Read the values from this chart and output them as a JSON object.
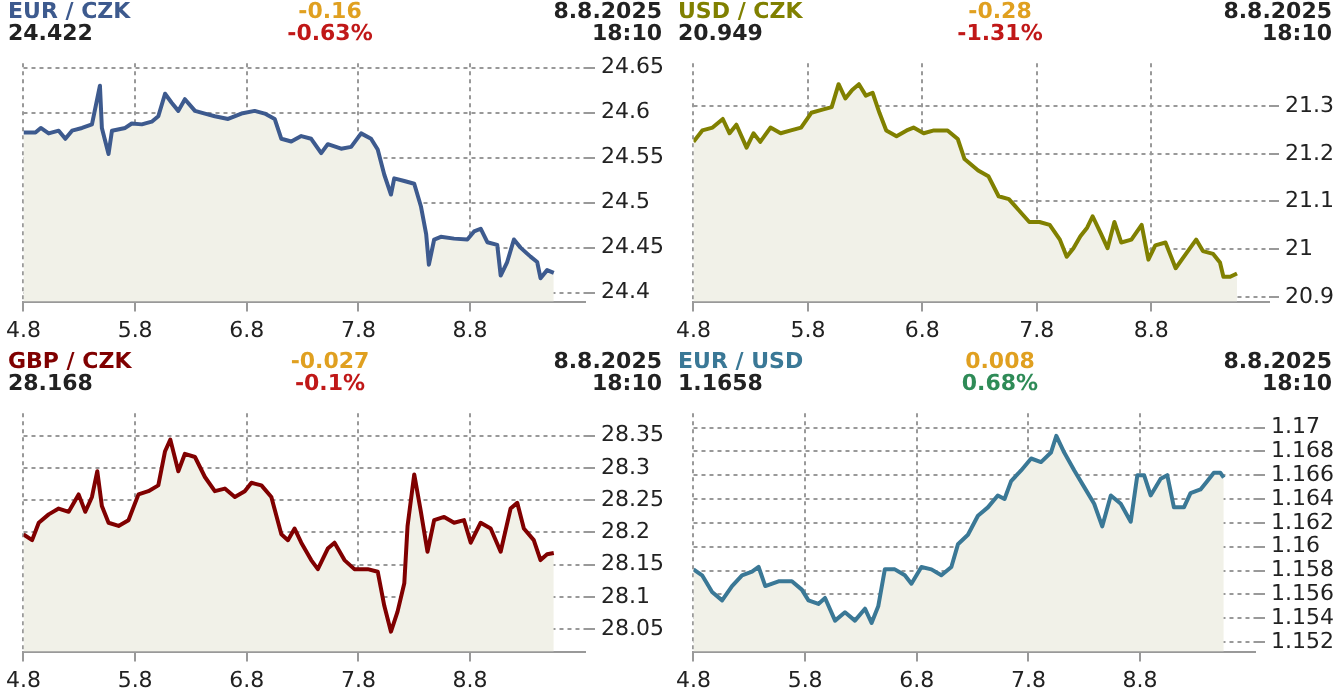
{
  "chart_data": [
    {
      "type": "area",
      "title": "EUR / CZK",
      "annotations": [
        "24.422",
        "-0.16",
        "-0.63%",
        "8.8.2025",
        "18:10"
      ],
      "xlim": [
        "2025-08-04T00:00",
        "2025-08-09T00:43"
      ],
      "xticks": [
        {
          "value": "2025-08-04",
          "label": "4.8"
        },
        {
          "value": "2025-08-05",
          "label": "5.8"
        },
        {
          "value": "2025-08-06",
          "label": "6.8"
        },
        {
          "value": "2025-08-07",
          "label": "7.8"
        },
        {
          "value": "2025-08-08",
          "label": "8.8"
        }
      ],
      "ylim": [
        24.39,
        24.655
      ],
      "yticks": [
        24.4,
        24.45,
        24.5,
        24.55,
        24.6,
        24.65
      ],
      "grid": true,
      "legend": false,
      "series": [
        {
          "color": "#3d5a8e",
          "x": [
            "2025-08-04T00:00",
            "2025-08-04T02:34",
            "2025-08-04T03:43",
            "2025-08-04T05:25",
            "2025-08-04T07:34",
            "2025-08-04T09:00",
            "2025-08-04T10:26",
            "2025-08-04T12:35",
            "2025-08-04T14:43",
            "2025-08-04T16:26",
            "2025-08-04T16:51",
            "2025-08-04T18:17",
            "2025-08-04T19:01",
            "2025-08-04T21:52",
            "2025-08-04T23:17",
            "2025-08-05T01:26",
            "2025-08-05T03:34",
            "2025-08-05T04:59",
            "2025-08-05T06:26",
            "2025-08-05T07:51",
            "2025-08-05T09:17",
            "2025-08-05T10:42",
            "2025-08-05T12:52",
            "2025-08-05T15:00",
            "2025-08-05T17:08",
            "2025-08-05T19:59",
            "2025-08-05T22:51",
            "2025-08-06T01:42",
            "2025-08-06T03:52",
            "2025-08-06T06:00",
            "2025-08-06T07:26",
            "2025-08-06T09:34",
            "2025-08-06T11:43",
            "2025-08-06T13:51",
            "2025-08-06T16:00",
            "2025-08-06T17:25",
            "2025-08-06T20:17",
            "2025-08-06T22:26",
            "2025-08-07T00:35",
            "2025-08-07T02:43",
            "2025-08-07T04:09",
            "2025-08-07T05:34",
            "2025-08-07T07:00",
            "2025-08-07T07:42",
            "2025-08-07T09:52",
            "2025-08-07T12:00",
            "2025-08-07T13:26",
            "2025-08-07T14:34",
            "2025-08-07T15:09",
            "2025-08-07T16:17",
            "2025-08-07T17:43",
            "2025-08-07T20:34",
            "2025-08-07T23:25",
            "2025-08-08T00:52",
            "2025-08-08T02:17",
            "2025-08-08T03:43",
            "2025-08-08T05:51",
            "2025-08-08T06:35",
            "2025-08-08T07:59",
            "2025-08-08T09:26",
            "2025-08-08T10:51",
            "2025-08-08T13:00",
            "2025-08-08T14:26",
            "2025-08-08T15:09",
            "2025-08-08T16:34",
            "2025-08-08T18:00"
          ],
          "values": [
            24.578,
            24.578,
            24.583,
            24.577,
            24.58,
            24.571,
            24.58,
            24.583,
            24.587,
            24.63,
            24.583,
            24.554,
            24.58,
            24.583,
            24.588,
            24.587,
            24.59,
            24.596,
            24.621,
            24.611,
            24.602,
            24.615,
            24.602,
            24.599,
            24.596,
            24.593,
            24.599,
            24.602,
            24.599,
            24.593,
            24.571,
            24.568,
            24.574,
            24.571,
            24.555,
            24.565,
            24.56,
            24.562,
            24.577,
            24.571,
            24.559,
            24.531,
            24.509,
            24.527,
            24.524,
            24.521,
            24.496,
            24.465,
            24.431,
            24.459,
            24.462,
            24.46,
            24.459,
            24.468,
            24.471,
            24.456,
            24.453,
            24.419,
            24.434,
            24.459,
            24.45,
            24.44,
            24.434,
            24.416,
            24.425,
            24.422
          ]
        }
      ]
    },
    {
      "type": "area",
      "title": "USD / CZK",
      "annotations": [
        "20.949",
        "-0.28",
        "-1.31%",
        "8.8.2025",
        "18:10"
      ],
      "xlim": [
        "2025-08-04T00:00",
        "2025-08-09T00:43"
      ],
      "xticks": [
        {
          "value": "2025-08-04",
          "label": "4.8"
        },
        {
          "value": "2025-08-05",
          "label": "5.8"
        },
        {
          "value": "2025-08-06",
          "label": "6.8"
        },
        {
          "value": "2025-08-07",
          "label": "7.8"
        },
        {
          "value": "2025-08-08",
          "label": "8.8"
        }
      ],
      "ylim": [
        20.89,
        21.39
      ],
      "yticks": [
        20.9,
        21,
        21.1,
        21.2,
        21.3
      ],
      "grid": true,
      "legend": false,
      "series": [
        {
          "color": "#808000",
          "x": [
            "2025-08-04T00:00",
            "2025-08-04T01:51",
            "2025-08-04T04:00",
            "2025-08-04T06:09",
            "2025-08-04T07:34",
            "2025-08-04T09:00",
            "2025-08-04T11:08",
            "2025-08-04T12:35",
            "2025-08-04T14:00",
            "2025-08-04T16:09",
            "2025-08-04T18:17",
            "2025-08-04T20:26",
            "2025-08-04T22:34",
            "2025-08-05T00:43",
            "2025-08-05T02:51",
            "2025-08-05T04:59",
            "2025-08-05T06:26",
            "2025-08-05T07:51",
            "2025-08-05T09:17",
            "2025-08-05T10:42",
            "2025-08-05T12:09",
            "2025-08-05T13:34",
            "2025-08-05T15:00",
            "2025-08-05T16:26",
            "2025-08-05T18:35",
            "2025-08-05T20:43",
            "2025-08-05T22:09",
            "2025-08-06T00:17",
            "2025-08-06T02:26",
            "2025-08-06T05:17",
            "2025-08-06T07:26",
            "2025-08-06T08:51",
            "2025-08-06T11:43",
            "2025-08-06T13:51",
            "2025-08-06T16:00",
            "2025-08-06T18:09",
            "2025-08-06T20:17",
            "2025-08-06T22:26",
            "2025-08-07T00:35",
            "2025-08-07T02:43",
            "2025-08-07T04:51",
            "2025-08-07T06:17",
            "2025-08-07T07:42",
            "2025-08-07T09:09",
            "2025-08-07T10:34",
            "2025-08-07T11:43",
            "2025-08-07T13:26",
            "2025-08-07T14:51",
            "2025-08-07T16:17",
            "2025-08-07T17:43",
            "2025-08-07T19:51",
            "2025-08-07T22:00",
            "2025-08-07T23:25",
            "2025-08-08T00:52",
            "2025-08-08T03:00",
            "2025-08-08T05:08",
            "2025-08-08T07:17",
            "2025-08-08T09:26",
            "2025-08-08T10:51",
            "2025-08-08T13:00",
            "2025-08-08T14:26",
            "2025-08-08T15:09",
            "2025-08-08T16:34",
            "2025-08-08T18:00"
          ],
          "values": [
            21.225,
            21.249,
            21.255,
            21.273,
            21.243,
            21.261,
            21.213,
            21.243,
            21.225,
            21.255,
            21.243,
            21.249,
            21.255,
            21.286,
            21.292,
            21.298,
            21.346,
            21.316,
            21.334,
            21.346,
            21.322,
            21.328,
            21.286,
            21.249,
            21.237,
            21.249,
            21.255,
            21.243,
            21.249,
            21.249,
            21.231,
            21.189,
            21.165,
            21.153,
            21.111,
            21.105,
            21.081,
            21.057,
            21.057,
            21.051,
            21.02,
            20.984,
            21.002,
            21.027,
            21.045,
            21.069,
            21.033,
            21.002,
            21.057,
            21.014,
            21.02,
            21.051,
            20.978,
            21.008,
            21.014,
            20.96,
            20.99,
            21.02,
            20.996,
            20.99,
            20.972,
            20.942,
            20.942,
            20.949
          ]
        }
      ]
    },
    {
      "type": "area",
      "title": "GBP / CZK",
      "annotations": [
        "28.168",
        "-0.027",
        "-0.1%",
        "8.8.2025",
        "18:10"
      ],
      "xlim": [
        "2025-08-04T00:00",
        "2025-08-09T00:43"
      ],
      "xticks": [
        {
          "value": "2025-08-04",
          "label": "4.8"
        },
        {
          "value": "2025-08-05",
          "label": "5.8"
        },
        {
          "value": "2025-08-06",
          "label": "6.8"
        },
        {
          "value": "2025-08-07",
          "label": "7.8"
        },
        {
          "value": "2025-08-08",
          "label": "8.8"
        }
      ],
      "ylim": [
        28.015,
        28.385
      ],
      "yticks": [
        28.05,
        28.1,
        28.15,
        28.2,
        28.25,
        28.3,
        28.35
      ],
      "grid": true,
      "legend": false,
      "series": [
        {
          "color": "#800000",
          "x": [
            "2025-08-04T00:00",
            "2025-08-04T01:51",
            "2025-08-04T03:17",
            "2025-08-04T05:25",
            "2025-08-04T07:34",
            "2025-08-04T09:43",
            "2025-08-04T11:51",
            "2025-08-04T13:17",
            "2025-08-04T14:43",
            "2025-08-04T15:52",
            "2025-08-04T16:51",
            "2025-08-04T18:17",
            "2025-08-04T20:26",
            "2025-08-04T22:34",
            "2025-08-05T00:43",
            "2025-08-05T02:51",
            "2025-08-05T04:59",
            "2025-08-05T06:26",
            "2025-08-05T07:34",
            "2025-08-05T09:17",
            "2025-08-05T10:42",
            "2025-08-05T12:52",
            "2025-08-05T15:00",
            "2025-08-05T17:08",
            "2025-08-05T19:17",
            "2025-08-05T21:26",
            "2025-08-05T23:34",
            "2025-08-06T01:00",
            "2025-08-06T03:09",
            "2025-08-06T05:17",
            "2025-08-06T07:26",
            "2025-08-06T08:51",
            "2025-08-06T10:17",
            "2025-08-06T11:43",
            "2025-08-06T13:51",
            "2025-08-06T15:17",
            "2025-08-06T17:25",
            "2025-08-06T18:52",
            "2025-08-06T21:00",
            "2025-08-06T23:08",
            "2025-08-07T02:00",
            "2025-08-07T04:09",
            "2025-08-07T05:34",
            "2025-08-07T07:00",
            "2025-08-07T08:25",
            "2025-08-07T09:52",
            "2025-08-07T10:34",
            "2025-08-07T12:00",
            "2025-08-07T13:26",
            "2025-08-07T14:51",
            "2025-08-07T16:17",
            "2025-08-07T18:26",
            "2025-08-07T20:34",
            "2025-08-07T22:42",
            "2025-08-08T00:09",
            "2025-08-08T02:17",
            "2025-08-08T04:26",
            "2025-08-08T06:35",
            "2025-08-08T08:43",
            "2025-08-08T10:09",
            "2025-08-08T11:34",
            "2025-08-08T13:42",
            "2025-08-08T15:09",
            "2025-08-08T16:34",
            "2025-08-08T18:00"
          ],
          "values": [
            28.197,
            28.188,
            28.215,
            28.228,
            28.237,
            28.232,
            28.259,
            28.232,
            28.255,
            28.295,
            28.241,
            28.215,
            28.21,
            28.219,
            28.259,
            28.264,
            28.273,
            28.326,
            28.344,
            28.295,
            28.322,
            28.317,
            28.286,
            28.264,
            28.268,
            28.255,
            28.264,
            28.277,
            28.273,
            28.255,
            28.197,
            28.188,
            28.206,
            28.184,
            28.157,
            28.143,
            28.175,
            28.184,
            28.157,
            28.143,
            28.143,
            28.139,
            28.086,
            28.046,
            28.077,
            28.121,
            28.21,
            28.29,
            28.232,
            28.17,
            28.219,
            28.224,
            28.215,
            28.219,
            28.184,
            28.215,
            28.206,
            28.17,
            28.237,
            28.246,
            28.206,
            28.188,
            28.157,
            28.166,
            28.168
          ]
        }
      ]
    },
    {
      "type": "area",
      "title": "EUR / USD",
      "annotations": [
        "1.1658",
        "0.008",
        "0.68%",
        "8.8.2025",
        "18:10"
      ],
      "xlim": [
        "2025-08-04T00:00",
        "2025-08-09T00:43"
      ],
      "xticks": [
        {
          "value": "2025-08-04",
          "label": "4.8"
        },
        {
          "value": "2025-08-05",
          "label": "5.8"
        },
        {
          "value": "2025-08-06",
          "label": "6.8"
        },
        {
          "value": "2025-08-07",
          "label": "7.8"
        },
        {
          "value": "2025-08-08",
          "label": "8.8"
        }
      ],
      "ylim": [
        1.1512,
        1.1712
      ],
      "yticks": [
        1.152,
        1.154,
        1.156,
        1.158,
        1.16,
        1.162,
        1.164,
        1.166,
        1.168,
        1.17
      ],
      "grid": true,
      "legend": false,
      "series": [
        {
          "color": "#3a7896",
          "x": [
            "2025-08-04T00:00",
            "2025-08-04T01:51",
            "2025-08-04T04:00",
            "2025-08-04T06:09",
            "2025-08-04T08:17",
            "2025-08-04T10:26",
            "2025-08-04T12:35",
            "2025-08-04T14:00",
            "2025-08-04T15:26",
            "2025-08-04T18:17",
            "2025-08-04T21:09",
            "2025-08-04T23:17",
            "2025-08-05T00:43",
            "2025-08-05T02:51",
            "2025-08-05T04:17",
            "2025-08-05T06:26",
            "2025-08-05T08:34",
            "2025-08-05T10:42",
            "2025-08-05T12:52",
            "2025-08-05T14:17",
            "2025-08-05T15:43",
            "2025-08-05T17:08",
            "2025-08-05T19:17",
            "2025-08-05T21:26",
            "2025-08-05T22:51",
            "2025-08-06T01:00",
            "2025-08-06T03:09",
            "2025-08-06T05:17",
            "2025-08-06T07:26",
            "2025-08-06T08:51",
            "2025-08-06T11:00",
            "2025-08-06T13:09",
            "2025-08-06T15:17",
            "2025-08-06T17:25",
            "2025-08-06T18:52",
            "2025-08-06T20:17",
            "2025-08-06T22:26",
            "2025-08-07T00:35",
            "2025-08-07T02:43",
            "2025-08-07T04:51",
            "2025-08-07T06:00",
            "2025-08-07T07:42",
            "2025-08-07T09:52",
            "2025-08-07T12:00",
            "2025-08-07T14:08",
            "2025-08-07T15:52",
            "2025-08-07T17:43",
            "2025-08-07T19:51",
            "2025-08-07T22:00",
            "2025-08-07T23:25",
            "2025-08-08T00:52",
            "2025-08-08T02:17",
            "2025-08-08T04:26",
            "2025-08-08T05:51",
            "2025-08-08T07:17",
            "2025-08-08T09:26",
            "2025-08-08T10:51",
            "2025-08-08T13:00",
            "2025-08-08T14:26",
            "2025-08-08T15:52",
            "2025-08-08T17:17",
            "2025-08-08T18:00"
          ],
          "values": [
            1.1581,
            1.1576,
            1.1562,
            1.1555,
            1.1567,
            1.1576,
            1.1579,
            1.1583,
            1.1567,
            1.1571,
            1.1571,
            1.1564,
            1.1555,
            1.1552,
            1.1557,
            1.1538,
            1.1545,
            1.1538,
            1.1548,
            1.1536,
            1.155,
            1.1581,
            1.1581,
            1.1576,
            1.1569,
            1.1583,
            1.1581,
            1.1576,
            1.1583,
            1.1602,
            1.161,
            1.1626,
            1.1633,
            1.1643,
            1.164,
            1.1655,
            1.1664,
            1.1674,
            1.1671,
            1.1679,
            1.1693,
            1.1679,
            1.1664,
            1.165,
            1.1636,
            1.1617,
            1.1643,
            1.1636,
            1.1621,
            1.166,
            1.166,
            1.1643,
            1.1657,
            1.166,
            1.1633,
            1.1633,
            1.1645,
            1.1648,
            1.1655,
            1.1662,
            1.1662,
            1.1658
          ]
        }
      ]
    }
  ]
}
